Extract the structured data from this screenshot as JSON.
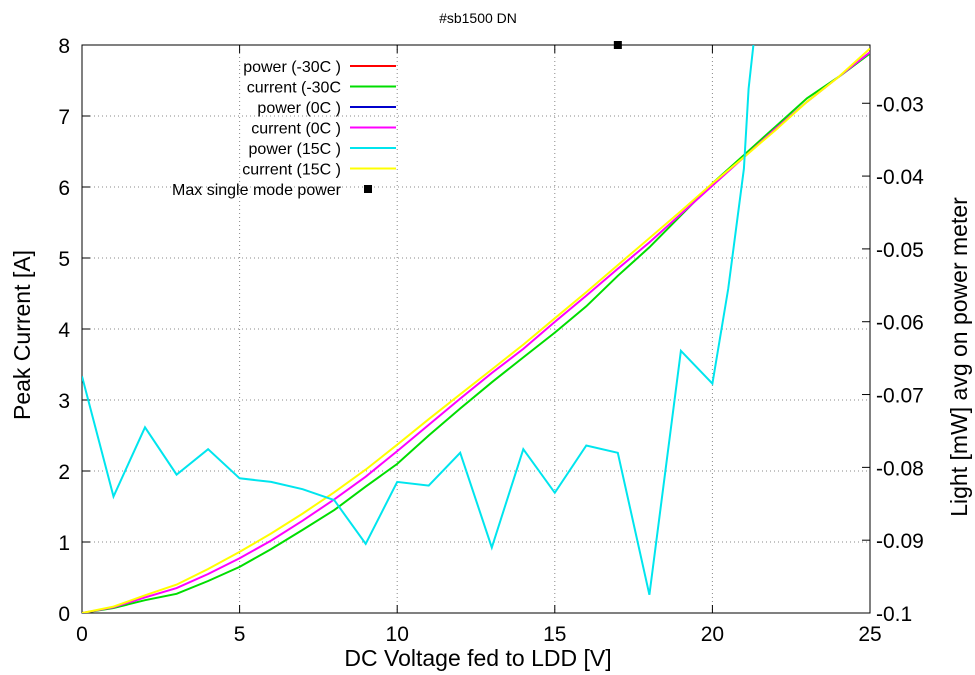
{
  "chart_data": {
    "type": "line",
    "title": "#sb1500 DN",
    "xlabel": "DC Voltage fed to LDD [V]",
    "ylabel": "Peak Current [A]",
    "y2label": "Light [mW] avg on power meter",
    "xlim": [
      0,
      25
    ],
    "ylim": [
      0,
      8
    ],
    "y2lim": [
      -0.1,
      -0.022
    ],
    "xticks": [
      0,
      5,
      10,
      15,
      20,
      25
    ],
    "yticks": [
      0,
      1,
      2,
      3,
      4,
      5,
      6,
      7,
      8
    ],
    "y2ticks": [
      -0.1,
      -0.09,
      -0.08,
      -0.07,
      -0.06,
      -0.05,
      -0.04,
      -0.03
    ],
    "grid": true,
    "legend_position": "top-left",
    "series": [
      {
        "name": "power (-30C )",
        "axis": "y2",
        "color": "#ff0000",
        "x": [],
        "y": []
      },
      {
        "name": "current (-30C",
        "axis": "y",
        "color": "#00dd00",
        "x": [
          0,
          1,
          2,
          3,
          4,
          5,
          6,
          7,
          8,
          9,
          10,
          11,
          12,
          13,
          14,
          15,
          16,
          17,
          18,
          19,
          20,
          21,
          22,
          23,
          24,
          25
        ],
        "y": [
          0,
          0.07,
          0.18,
          0.27,
          0.45,
          0.65,
          0.9,
          1.17,
          1.45,
          1.78,
          2.1,
          2.5,
          2.88,
          3.25,
          3.6,
          3.95,
          4.32,
          4.75,
          5.15,
          5.6,
          6.05,
          6.45,
          6.85,
          7.25,
          7.55,
          7.88
        ]
      },
      {
        "name": "power (0C )",
        "axis": "y2",
        "color": "#0000cc",
        "x": [],
        "y": []
      },
      {
        "name": "current (0C )",
        "axis": "y",
        "color": "#ff00ff",
        "x": [
          0,
          1,
          2,
          3,
          4,
          5,
          6,
          7,
          8,
          9,
          10,
          11,
          12,
          13,
          14,
          15,
          16,
          17,
          18,
          19,
          20,
          21,
          22,
          23,
          24,
          25
        ],
        "y": [
          0,
          0.08,
          0.22,
          0.35,
          0.55,
          0.77,
          1.02,
          1.3,
          1.6,
          1.92,
          2.28,
          2.65,
          3.02,
          3.38,
          3.72,
          4.1,
          4.47,
          4.85,
          5.22,
          5.62,
          6.02,
          6.42,
          6.82,
          7.2,
          7.55,
          7.9
        ]
      },
      {
        "name": "power (15C )",
        "axis": "y2",
        "color": "#00e5ee",
        "x": [
          0,
          1,
          2,
          3,
          4,
          5,
          6,
          7,
          8,
          9,
          10,
          11,
          12,
          13,
          14,
          15,
          16,
          17,
          18,
          19,
          20,
          20.5,
          21,
          21.15,
          21.3
        ],
        "y": [
          -0.0675,
          -0.084,
          -0.0745,
          -0.081,
          -0.0775,
          -0.0815,
          -0.082,
          -0.083,
          -0.0845,
          -0.0905,
          -0.082,
          -0.0825,
          -0.078,
          -0.091,
          -0.0775,
          -0.0835,
          -0.077,
          -0.078,
          -0.0975,
          -0.064,
          -0.0685,
          -0.0555,
          -0.039,
          -0.028,
          -0.022
        ]
      },
      {
        "name": "current (15C )",
        "axis": "y",
        "color": "#ffff00",
        "x": [
          0,
          1,
          2,
          3,
          4,
          5,
          6,
          7,
          8,
          9,
          10,
          11,
          12,
          13,
          14,
          15,
          16,
          17,
          18,
          19,
          20,
          21,
          22,
          23,
          24,
          25
        ],
        "y": [
          0,
          0.09,
          0.25,
          0.4,
          0.62,
          0.86,
          1.12,
          1.4,
          1.7,
          2.02,
          2.37,
          2.73,
          3.08,
          3.43,
          3.78,
          4.15,
          4.52,
          4.9,
          5.28,
          5.66,
          6.05,
          6.42,
          6.8,
          7.2,
          7.55,
          7.95
        ]
      },
      {
        "name": "Max single mode power",
        "axis": "y",
        "color": "#000000",
        "marker": "square",
        "x": [
          17
        ],
        "y": [
          8
        ]
      }
    ]
  }
}
